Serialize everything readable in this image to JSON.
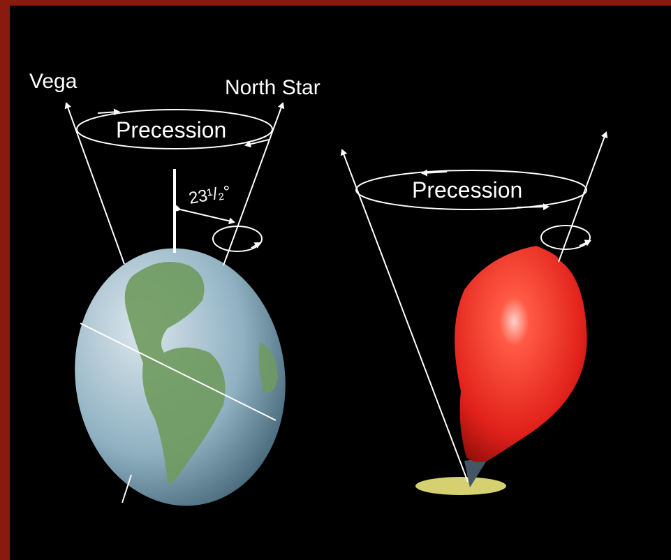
{
  "earth": {
    "star_left": "Vega",
    "star_right": "North Star",
    "motion": "Precession",
    "tilt": "23¹/₂°"
  },
  "top": {
    "motion": "Precession"
  }
}
